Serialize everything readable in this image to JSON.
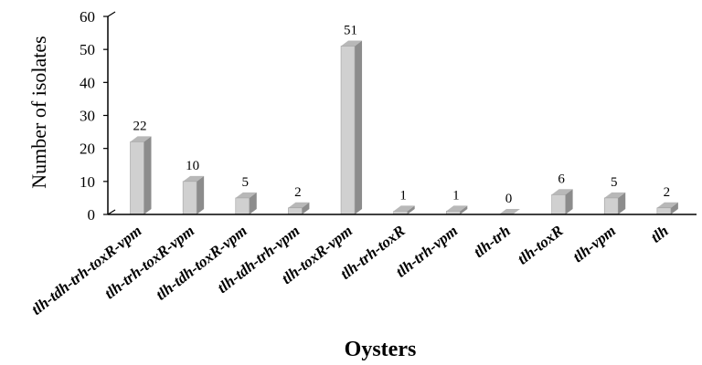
{
  "chart_data": {
    "type": "bar",
    "title": "",
    "xlabel": "Oysters",
    "ylabel": "Number of isolates",
    "ylim": [
      0,
      60
    ],
    "yticks": [
      0,
      10,
      20,
      30,
      40,
      50,
      60
    ],
    "grid": false,
    "categories": [
      "tlh-tdh-trh-toxR-vpm",
      "tlh-trh-toxR-vpm",
      "tlh-tdh-toxR-vpm",
      "tlh-tdh-trh-vpm",
      "tlh-toxR-vpm",
      "tlh-trh-toxR",
      "tlh-trh-vpm",
      "tlh-trh",
      "tlh-toxR",
      "tlh-vpm",
      "tlh"
    ],
    "values": [
      22,
      10,
      5,
      2,
      51,
      1,
      1,
      0,
      6,
      5,
      2
    ],
    "colors": {
      "bar_front": "#d0d0d0",
      "bar_top": "#b8b8b8",
      "bar_side": "#8c8c8c",
      "axis": "#000000"
    }
  }
}
